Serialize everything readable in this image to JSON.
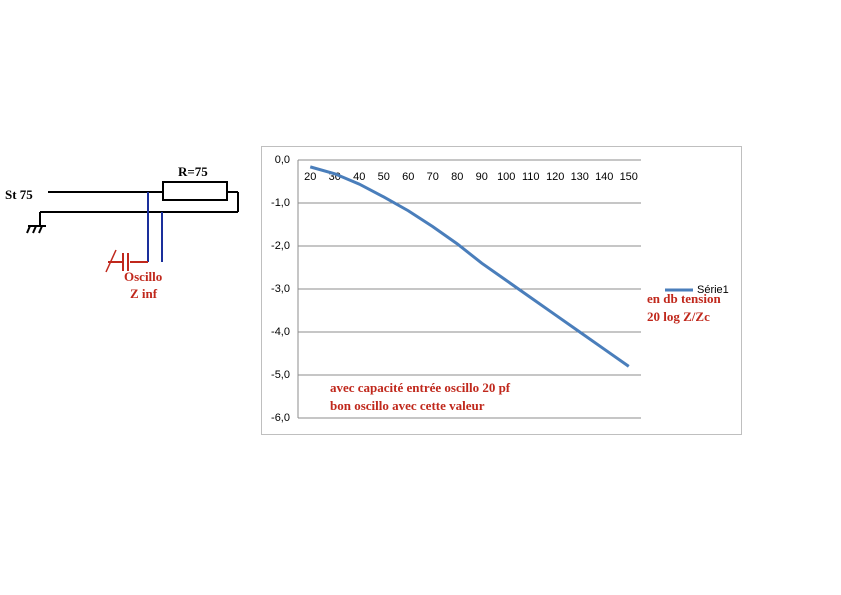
{
  "chart_data": {
    "type": "line",
    "categories": [
      "20",
      "30",
      "40",
      "50",
      "60",
      "70",
      "80",
      "90",
      "100",
      "110",
      "120",
      "130",
      "140",
      "150"
    ],
    "series": [
      {
        "name": "Série1",
        "color": "#4a7ebb",
        "values": [
          -0.16,
          -0.32,
          -0.56,
          -0.86,
          -1.18,
          -1.55,
          -1.95,
          -2.4,
          -2.8,
          -3.2,
          -3.6,
          -4.0,
          -4.4,
          -4.8
        ]
      }
    ],
    "ylim": [
      -6,
      0
    ],
    "yticks": [
      {
        "value": 0,
        "label": "0,0"
      },
      {
        "value": -1,
        "label": "-1,0"
      },
      {
        "value": -2,
        "label": "-2,0"
      },
      {
        "value": -3,
        "label": "-3,0"
      },
      {
        "value": -4,
        "label": "-4,0"
      },
      {
        "value": -5,
        "label": "-5,0"
      },
      {
        "value": -6,
        "label": "-6,0"
      }
    ],
    "grid": true,
    "legend": "right",
    "annotations": [
      "en db tension",
      "20 log Z/Zc",
      "avec capacité entrée oscillo 20 pf",
      "bon oscillo avec cette valeur"
    ]
  },
  "diagram": {
    "source": "St 75",
    "resistor": "R=75",
    "probe": [
      "Oscillo",
      "Z inf"
    ]
  }
}
